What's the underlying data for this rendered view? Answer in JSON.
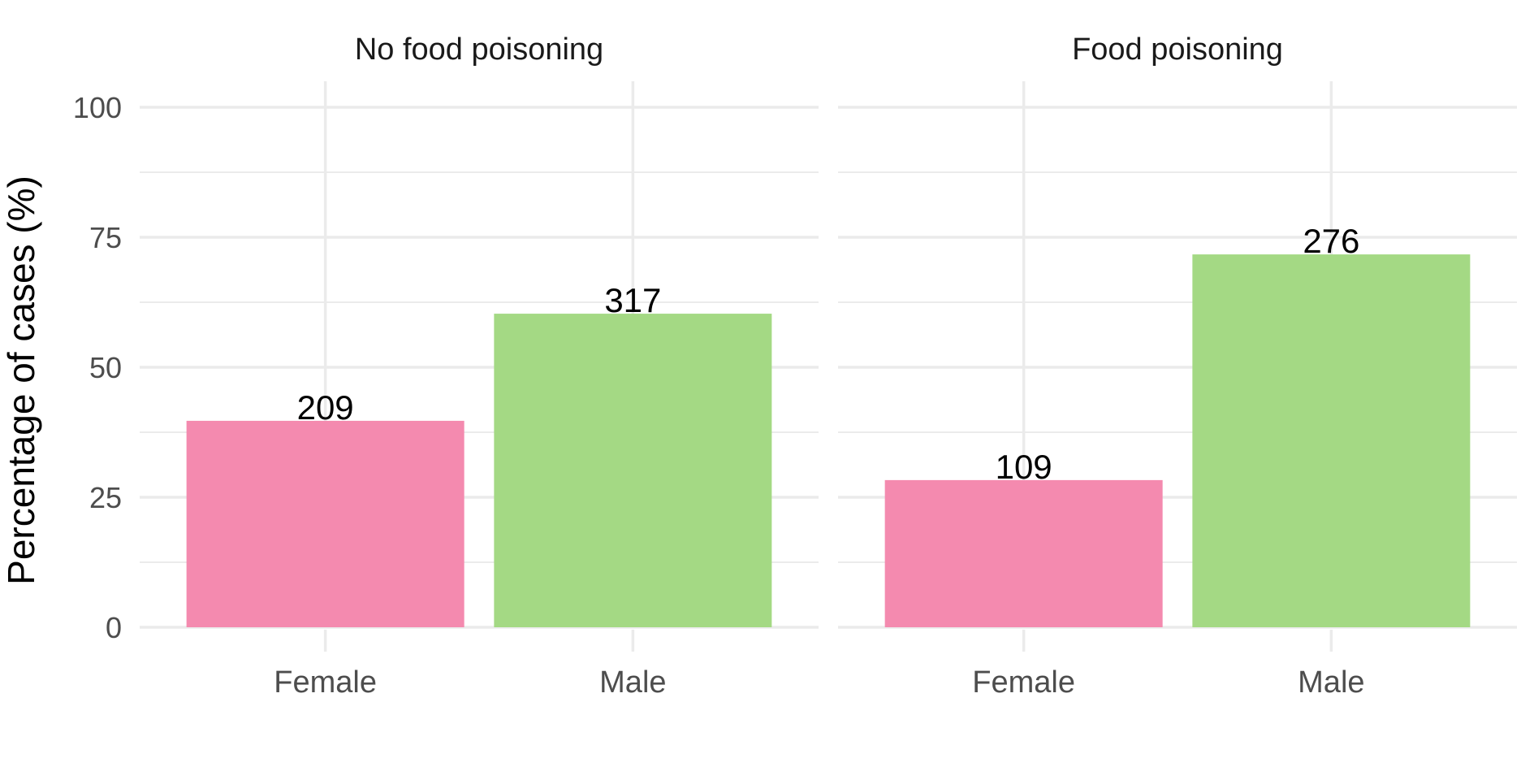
{
  "chart_data": {
    "type": "bar",
    "ylabel": "Percentage of cases (%)",
    "xlabel": "",
    "ylim": [
      0,
      100
    ],
    "yticks": [
      0,
      25,
      50,
      75,
      100
    ],
    "grid": true,
    "categories": [
      "Female",
      "Male"
    ],
    "colors": {
      "Female": "#f48aaf",
      "Male": "#a4d984"
    },
    "panels": [
      {
        "title": "No food poisoning",
        "bars": [
          {
            "category": "Female",
            "value": 39.7,
            "label": "209"
          },
          {
            "category": "Male",
            "value": 60.3,
            "label": "317"
          }
        ]
      },
      {
        "title": "Food poisoning",
        "bars": [
          {
            "category": "Female",
            "value": 28.3,
            "label": "109"
          },
          {
            "category": "Male",
            "value": 71.7,
            "label": "276"
          }
        ]
      }
    ]
  }
}
